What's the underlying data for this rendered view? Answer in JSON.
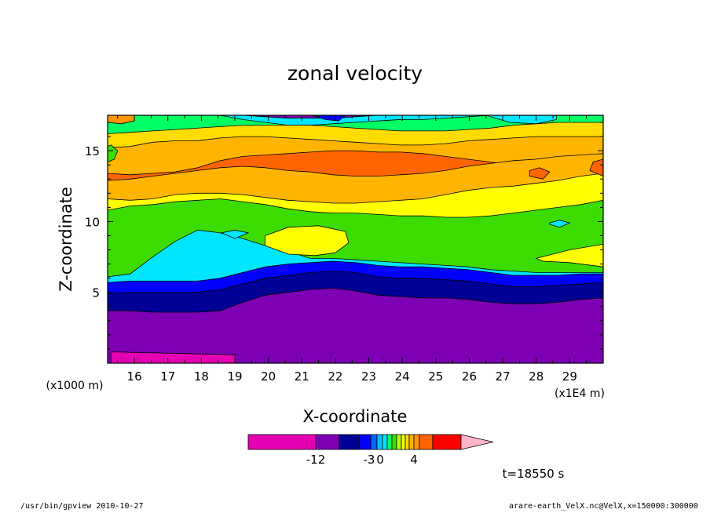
{
  "chart_data": {
    "type": "heatmap",
    "title": "zonal velocity",
    "xlabel": "X-coordinate",
    "ylabel": "Z-coordinate",
    "x_unit": "(x1E4 m)",
    "y_unit": "(x1000 m)",
    "xlim": [
      15.2,
      30.0
    ],
    "ylim": [
      0.0,
      17.5
    ],
    "x_ticks": [
      "16",
      "17",
      "18",
      "19",
      "20",
      "21",
      "22",
      "23",
      "24",
      "25",
      "26",
      "27",
      "28",
      "29"
    ],
    "y_ticks": [
      "5",
      "10",
      "15"
    ],
    "time_label": "t=18550 s",
    "colorbar": {
      "tick_labels": [
        "-12",
        "-3",
        "0",
        "4"
      ],
      "colors": [
        "#e600b4",
        "#7d00b4",
        "#000096",
        "#0000ff",
        "#0064ff",
        "#00c8ff",
        "#00e6ff",
        "#00ff64",
        "#3cdc00",
        "#b4ff00",
        "#ffff00",
        "#ffdc00",
        "#ffb400",
        "#ff9600",
        "#ff6400",
        "#ff0000",
        "#ff7878",
        "#ffb4c8"
      ]
    },
    "bands": [
      {
        "color": "#7d00b4",
        "top": [
          3.7,
          3.7,
          3.6,
          3.6,
          3.6,
          3.7,
          4.3,
          4.8,
          5.0,
          5.2,
          5.3,
          5.1,
          4.8,
          4.7,
          4.6,
          4.6,
          4.5,
          4.3,
          4.2,
          4.2,
          4.3,
          4.5,
          4.6
        ]
      },
      {
        "color": "#000096",
        "top": [
          4.9,
          5.0,
          5.0,
          5.0,
          5.0,
          5.2,
          5.6,
          6.0,
          6.2,
          6.4,
          6.5,
          6.4,
          6.1,
          6.0,
          6.0,
          5.9,
          5.8,
          5.6,
          5.4,
          5.4,
          5.5,
          5.6,
          5.7
        ]
      },
      {
        "color": "#0000ff",
        "top": [
          5.7,
          5.8,
          5.8,
          5.8,
          5.8,
          6.0,
          6.4,
          6.8,
          7.0,
          7.1,
          7.2,
          7.1,
          6.9,
          6.8,
          6.8,
          6.7,
          6.6,
          6.4,
          6.2,
          6.2,
          6.2,
          6.3,
          6.3
        ]
      },
      {
        "color": "#00e6ff",
        "top": [
          6.1,
          6.3,
          7.5,
          8.6,
          9.4,
          9.2,
          8.8,
          8.3,
          7.9,
          7.4,
          7.4,
          7.3,
          7.2,
          7.1,
          7.0,
          6.9,
          6.8,
          6.6,
          6.5,
          6.4,
          6.4,
          6.4,
          6.4
        ]
      },
      {
        "color": "#3cdc00",
        "top": [
          10.8,
          11.1,
          11.2,
          11.4,
          11.5,
          11.6,
          11.4,
          11.2,
          10.9,
          10.7,
          10.6,
          10.6,
          10.5,
          10.4,
          10.4,
          10.3,
          10.3,
          10.4,
          10.6,
          10.8,
          11.0,
          11.2,
          11.5
        ]
      },
      {
        "color": "#ffff00",
        "top": [
          11.6,
          11.5,
          11.6,
          11.9,
          12.0,
          12.0,
          11.9,
          11.7,
          11.5,
          11.4,
          11.3,
          11.3,
          11.4,
          11.5,
          11.6,
          11.9,
          12.2,
          12.4,
          12.5,
          12.7,
          12.9,
          13.2,
          13.4
        ]
      },
      {
        "color": "#ffb400",
        "top": [
          12.9,
          13.0,
          13.2,
          13.4,
          13.6,
          13.8,
          13.9,
          13.8,
          13.6,
          13.5,
          13.3,
          13.2,
          13.2,
          13.3,
          13.4,
          13.6,
          13.9,
          14.1,
          14.3,
          14.4,
          14.6,
          14.7,
          14.8
        ]
      },
      {
        "color": "#ff6400",
        "top": [
          13.4,
          13.3,
          13.4,
          13.5,
          13.8,
          14.3,
          14.6,
          14.7,
          14.8,
          14.9,
          15.0,
          15.0,
          14.9,
          14.9,
          14.8,
          14.6,
          14.4,
          14.2,
          14.0,
          13.9,
          13.9,
          13.9,
          13.9
        ]
      },
      {
        "color": "#ffb400",
        "top": [
          15.2,
          15.3,
          15.6,
          15.7,
          15.7,
          15.9,
          16.0,
          16.0,
          15.9,
          15.8,
          15.7,
          15.6,
          15.5,
          15.4,
          15.4,
          15.5,
          15.7,
          15.8,
          15.9,
          16.0,
          16.0,
          16.0,
          16.0
        ]
      },
      {
        "color": "#ffdc00",
        "top": [
          16.2,
          16.3,
          16.4,
          16.5,
          16.6,
          16.7,
          16.8,
          16.8,
          16.8,
          16.8,
          16.7,
          16.6,
          16.5,
          16.4,
          16.4,
          16.4,
          16.5,
          16.6,
          16.8,
          16.9,
          17.0,
          17.0,
          17.0
        ]
      },
      {
        "color": "#00ff64",
        "top": [
          17.5,
          17.5,
          17.5,
          17.5,
          17.5,
          17.5,
          17.2,
          17.0,
          16.8,
          16.8,
          16.9,
          17.0,
          17.1,
          17.2,
          17.2,
          17.3,
          17.4,
          17.5,
          17.5,
          17.5,
          17.5,
          17.5,
          17.5
        ]
      },
      {
        "color": "#00e6ff",
        "top": [
          17.5,
          17.5,
          17.5,
          17.5,
          17.5,
          17.5,
          17.5,
          17.4,
          17.3,
          17.3,
          17.3,
          17.4,
          17.5,
          17.5,
          17.5,
          17.5,
          17.5,
          17.5,
          17.5,
          17.5,
          17.5,
          17.5,
          17.5
        ]
      }
    ],
    "blobs": [
      {
        "color": "#e600b4",
        "x": [
          15.3,
          16.5,
          17.6,
          18.6,
          19.0,
          19.0,
          15.3
        ],
        "y": [
          0.0,
          0.0,
          0.0,
          0.0,
          0.0,
          0.6,
          0.8
        ]
      },
      {
        "color": "#ffff00",
        "x": [
          19.9,
          20.6,
          21.4,
          22.0,
          22.4,
          22.3,
          21.5,
          20.6,
          19.9
        ],
        "y": [
          8.3,
          7.7,
          7.6,
          7.8,
          8.5,
          9.3,
          9.7,
          9.6,
          9.0
        ]
      },
      {
        "color": "#00e6ff",
        "x": [
          28.4,
          28.7,
          29.0,
          28.7,
          28.4
        ],
        "y": [
          9.8,
          9.6,
          9.9,
          10.1,
          9.9
        ]
      },
      {
        "color": "#ffff00",
        "x": [
          28.0,
          29.0,
          30.0,
          30.0,
          29.0,
          28.2
        ],
        "y": [
          7.4,
          8.0,
          8.4,
          6.8,
          7.1,
          7.2
        ]
      },
      {
        "color": "#ff6400",
        "x": [
          27.8,
          28.2,
          28.4,
          28.1,
          27.8
        ],
        "y": [
          13.2,
          13.0,
          13.5,
          13.8,
          13.6
        ]
      },
      {
        "color": "#ff6400",
        "x": [
          29.6,
          30.0,
          30.0,
          29.7
        ],
        "y": [
          13.6,
          13.2,
          14.4,
          14.2
        ]
      },
      {
        "color": "#0000ff",
        "x": [
          21.3,
          21.7,
          22.1,
          22.3,
          21.3
        ],
        "y": [
          17.5,
          17.2,
          17.1,
          17.5,
          17.5
        ]
      },
      {
        "color": "#00e6ff",
        "x": [
          26.5,
          27.2,
          28.0,
          28.6,
          28.6,
          26.5
        ],
        "y": [
          17.5,
          17.0,
          16.9,
          17.2,
          17.5,
          17.5
        ]
      },
      {
        "color": "#00e6ff",
        "x": [
          18.6,
          19.0,
          19.4,
          19.0
        ],
        "y": [
          9.2,
          8.8,
          9.2,
          9.4
        ]
      },
      {
        "color": "#3cdc00",
        "x": [
          15.2,
          15.4,
          15.5,
          15.3,
          15.2
        ],
        "y": [
          14.2,
          14.4,
          15.0,
          15.4,
          15.3
        ]
      },
      {
        "color": "#ff9600",
        "x": [
          15.2,
          15.6,
          16.0,
          16.0,
          15.2
        ],
        "y": [
          17.0,
          16.9,
          17.1,
          17.5,
          17.5
        ]
      }
    ]
  },
  "footer": {
    "left": "/usr/bin/gpview   2010-10-27",
    "right": "arare-earth_VelX.nc@VelX,x=150000:300000"
  }
}
